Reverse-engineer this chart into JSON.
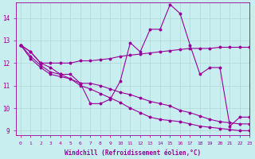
{
  "xlabel": "Windchill (Refroidissement éolien,°C)",
  "xlim": [
    -0.5,
    23
  ],
  "ylim": [
    8.8,
    14.7
  ],
  "yticks": [
    9,
    10,
    11,
    12,
    13,
    14
  ],
  "xticks": [
    0,
    1,
    2,
    3,
    4,
    5,
    6,
    7,
    8,
    9,
    10,
    11,
    12,
    13,
    14,
    15,
    16,
    17,
    18,
    19,
    20,
    21,
    22,
    23
  ],
  "background_color": "#c8eef0",
  "line_color": "#990099",
  "grid_color": "#b0d8d8",
  "lines": [
    [
      12.8,
      12.5,
      12.0,
      11.8,
      11.5,
      11.5,
      11.1,
      10.2,
      10.2,
      10.4,
      11.2,
      12.9,
      12.5,
      13.5,
      13.5,
      14.6,
      14.2,
      12.8,
      11.5,
      11.8,
      11.8,
      9.2,
      9.6,
      9.6
    ],
    [
      12.8,
      12.5,
      12.0,
      12.0,
      12.0,
      12.0,
      12.1,
      12.1,
      12.15,
      12.2,
      12.3,
      12.35,
      12.4,
      12.45,
      12.5,
      12.55,
      12.6,
      12.65,
      12.65,
      12.65,
      12.7,
      12.7,
      12.7,
      12.7
    ],
    [
      12.8,
      12.2,
      11.8,
      11.5,
      11.4,
      11.3,
      11.1,
      11.1,
      11.0,
      10.85,
      10.7,
      10.6,
      10.45,
      10.3,
      10.2,
      10.1,
      9.9,
      9.8,
      9.65,
      9.5,
      9.4,
      9.35,
      9.3,
      9.3
    ],
    [
      12.8,
      12.3,
      11.9,
      11.6,
      11.5,
      11.3,
      11.0,
      10.85,
      10.65,
      10.45,
      10.25,
      10.0,
      9.8,
      9.6,
      9.5,
      9.45,
      9.4,
      9.3,
      9.2,
      9.15,
      9.1,
      9.05,
      9.0,
      9.0
    ]
  ]
}
